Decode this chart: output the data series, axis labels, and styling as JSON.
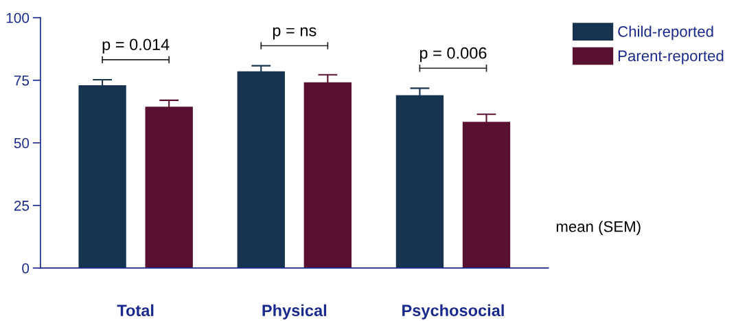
{
  "chart_data": {
    "type": "bar",
    "categories": [
      "Total",
      "Physical",
      "Psychosocial"
    ],
    "series": [
      {
        "name": "Child-reported",
        "color": "#163450",
        "values": [
          73,
          78.6,
          69
        ],
        "errors": [
          2.2,
          2.2,
          2.8
        ]
      },
      {
        "name": "Parent-reported",
        "color": "#5a1030",
        "values": [
          64.4,
          74.2,
          58.4
        ],
        "errors": [
          2.6,
          3.0,
          3.0
        ]
      }
    ],
    "ylim": [
      0,
      100
    ],
    "yticks": [
      0,
      25,
      50,
      75,
      100
    ],
    "grid": false,
    "legend": "top right",
    "annotations": [
      "p = 0.014",
      "p = ns",
      "p = 0.006",
      "mean (SEM)"
    ]
  }
}
